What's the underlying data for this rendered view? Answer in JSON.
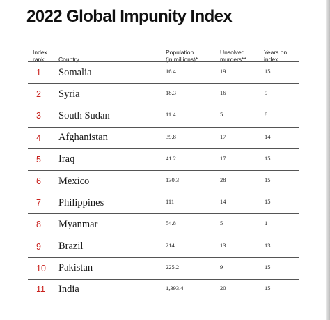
{
  "title": "2022 Global Impunity Index",
  "headers": {
    "rank_line1": "Index",
    "rank_line2": "rank",
    "country": "Country",
    "population_line1": "Population",
    "population_line2": "(in millions)*",
    "murders_line1": "Unsolved",
    "murders_line2": "murders**",
    "years_line1": "Years on",
    "years_line2": "index"
  },
  "rows": [
    {
      "rank": "1",
      "country": "Somalia",
      "population": "16.4",
      "murders": "19",
      "years": "15"
    },
    {
      "rank": "2",
      "country": "Syria",
      "population": "18.3",
      "murders": "16",
      "years": "9"
    },
    {
      "rank": "3",
      "country": "South Sudan",
      "population": "11.4",
      "murders": "5",
      "years": "8"
    },
    {
      "rank": "4",
      "country": "Afghanistan",
      "population": "39.8",
      "murders": "17",
      "years": "14"
    },
    {
      "rank": "5",
      "country": "Iraq",
      "population": "41.2",
      "murders": "17",
      "years": "15"
    },
    {
      "rank": "6",
      "country": "Mexico",
      "population": "130.3",
      "murders": "28",
      "years": "15"
    },
    {
      "rank": "7",
      "country": "Philippines",
      "population": "111",
      "murders": "14",
      "years": "15"
    },
    {
      "rank": "8",
      "country": "Myanmar",
      "population": "54.8",
      "murders": "5",
      "years": "1"
    },
    {
      "rank": "9",
      "country": "Brazil",
      "population": "214",
      "murders": "13",
      "years": "13"
    },
    {
      "rank": "10",
      "country": "Pakistan",
      "population": "225.2",
      "murders": "9",
      "years": "15"
    },
    {
      "rank": "11",
      "country": "India",
      "population": "1,393.4",
      "murders": "20",
      "years": "15"
    }
  ],
  "colors": {
    "rank_accent": "#c8201c",
    "text": "#1a1a1a",
    "rule": "#555555"
  }
}
